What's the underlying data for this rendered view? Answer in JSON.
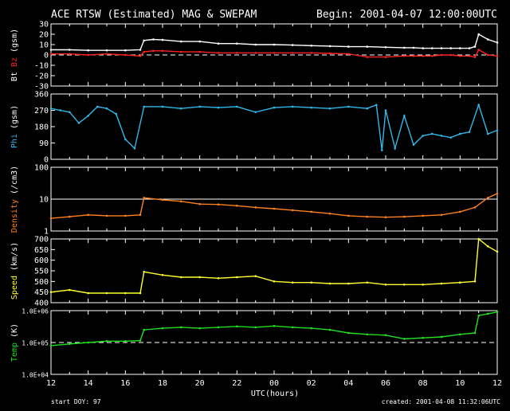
{
  "header": {
    "title": "ACE RTSW (Estimated) MAG & SWEPAM",
    "begin": "Begin: 2001-04-07 12:00:00UTC"
  },
  "footer": {
    "start_doy": "start DOY:  97",
    "created": "created: 2001-04-08 11:32:06UTC",
    "xlabel": "UTC(hours)"
  },
  "x_ticks": [
    "12",
    "14",
    "16",
    "18",
    "20",
    "22",
    "00",
    "02",
    "04",
    "06",
    "08",
    "10",
    "12"
  ],
  "colors": {
    "bt": "#ffffff",
    "bz": "#ff2020",
    "phi": "#30b8e8",
    "density": "#ff8020",
    "speed": "#ffff30",
    "temp": "#20e020",
    "frame": "#ffffff"
  },
  "chart_data": [
    {
      "type": "scatter",
      "panel": "mag",
      "ylabel_parts": [
        "Bt",
        "Bz",
        "(gsm)"
      ],
      "ylim": [
        -30,
        30
      ],
      "yticks": [
        "30",
        "20",
        "10",
        "0",
        "-10",
        "-20",
        "-30"
      ],
      "reference_line": 0,
      "x_hours": [
        0,
        1,
        2,
        3,
        4,
        4.8,
        5,
        5.5,
        6,
        7,
        8,
        9,
        10,
        11,
        12,
        13,
        14,
        15,
        16,
        17,
        18,
        19,
        19.5,
        20,
        20.5,
        21,
        21.5,
        22,
        22.5,
        22.8,
        23,
        23.5,
        24
      ],
      "series": [
        {
          "name": "Bt",
          "values": [
            5,
            5,
            4.5,
            4.5,
            4.5,
            5,
            14,
            15,
            14.5,
            13,
            13,
            11,
            11,
            10,
            10,
            9.5,
            9,
            8.5,
            8,
            8,
            7.5,
            7,
            7,
            6.5,
            6.5,
            6.5,
            6.5,
            6.5,
            6.5,
            8,
            20,
            15,
            12
          ]
        },
        {
          "name": "Bz",
          "values": [
            1,
            1,
            0,
            1,
            0,
            -1,
            3,
            4,
            4,
            3,
            3,
            2,
            2,
            2,
            2,
            2,
            2,
            1.5,
            1,
            -2,
            -2,
            -1,
            -1,
            -1,
            -1,
            0,
            0,
            -1,
            -1,
            -2,
            5,
            0,
            -1
          ]
        }
      ]
    },
    {
      "type": "scatter",
      "panel": "phi",
      "ylabel": "Phi (gsm)",
      "ylim": [
        0,
        360
      ],
      "yticks": [
        "360",
        "270",
        "180",
        "90",
        "0"
      ],
      "x_hours": [
        0,
        0.5,
        1,
        1.5,
        2,
        2.5,
        3,
        3.5,
        4,
        4.5,
        5,
        6,
        7,
        8,
        9,
        10,
        11,
        12,
        13,
        14,
        15,
        16,
        17,
        17.5,
        17.8,
        18,
        18.5,
        19,
        19.5,
        20,
        20.5,
        21,
        21.5,
        22,
        22.5,
        23,
        23.5,
        24
      ],
      "values": [
        280,
        270,
        260,
        200,
        240,
        290,
        280,
        250,
        110,
        60,
        290,
        290,
        280,
        290,
        285,
        290,
        260,
        285,
        290,
        285,
        280,
        290,
        280,
        300,
        50,
        270,
        60,
        240,
        80,
        130,
        140,
        130,
        120,
        140,
        150,
        300,
        140,
        160
      ]
    },
    {
      "type": "scatter",
      "panel": "density",
      "ylabel": "Density (/cm3)",
      "ylim": [
        1,
        100
      ],
      "log": true,
      "yticks": [
        "100",
        "10",
        "1"
      ],
      "reference_line": 10,
      "x_hours": [
        0,
        1,
        2,
        3,
        4,
        4.8,
        5,
        6,
        7,
        8,
        9,
        10,
        11,
        12,
        13,
        14,
        15,
        16,
        17,
        18,
        19,
        20,
        21,
        22,
        22.8,
        23.5,
        24
      ],
      "values": [
        2.5,
        2.8,
        3.2,
        3.0,
        3.0,
        3.2,
        11,
        9.5,
        8.5,
        7,
        6.8,
        6.2,
        5.5,
        5,
        4.5,
        4,
        3.5,
        3,
        2.8,
        2.7,
        2.8,
        3,
        3.2,
        4,
        5.5,
        11,
        15
      ]
    },
    {
      "type": "scatter",
      "panel": "speed",
      "ylabel": "Speed (km/s)",
      "ylim": [
        400,
        700
      ],
      "yticks": [
        "700",
        "650",
        "600",
        "550",
        "500",
        "450",
        "400"
      ],
      "x_hours": [
        0,
        1,
        2,
        3,
        4,
        4.8,
        5,
        6,
        7,
        8,
        9,
        10,
        11,
        12,
        13,
        14,
        15,
        16,
        17,
        18,
        19,
        20,
        21,
        22,
        22.8,
        23,
        23.5,
        24
      ],
      "values": [
        450,
        460,
        445,
        445,
        445,
        445,
        545,
        530,
        520,
        520,
        515,
        520,
        525,
        500,
        495,
        495,
        490,
        490,
        495,
        485,
        485,
        485,
        490,
        495,
        500,
        700,
        665,
        640
      ]
    },
    {
      "type": "scatter",
      "panel": "temp",
      "ylabel": "Temp (K)",
      "ylim": [
        10000,
        1000000
      ],
      "log": true,
      "yticks": [
        "1.0E+06",
        "1.0E+05",
        "1.0E+04"
      ],
      "reference_line": 100000,
      "x_hours": [
        0,
        1,
        2,
        3,
        4,
        4.8,
        5,
        6,
        7,
        8,
        9,
        10,
        11,
        12,
        13,
        14,
        15,
        16,
        17,
        18,
        19,
        20,
        21,
        22,
        22.8,
        23,
        23.5,
        24
      ],
      "values": [
        80000,
        90000,
        100000,
        110000,
        110000,
        115000,
        250000,
        280000,
        300000,
        280000,
        300000,
        320000,
        300000,
        330000,
        300000,
        280000,
        250000,
        200000,
        180000,
        170000,
        130000,
        140000,
        150000,
        180000,
        200000,
        700000,
        800000,
        900000
      ]
    }
  ]
}
